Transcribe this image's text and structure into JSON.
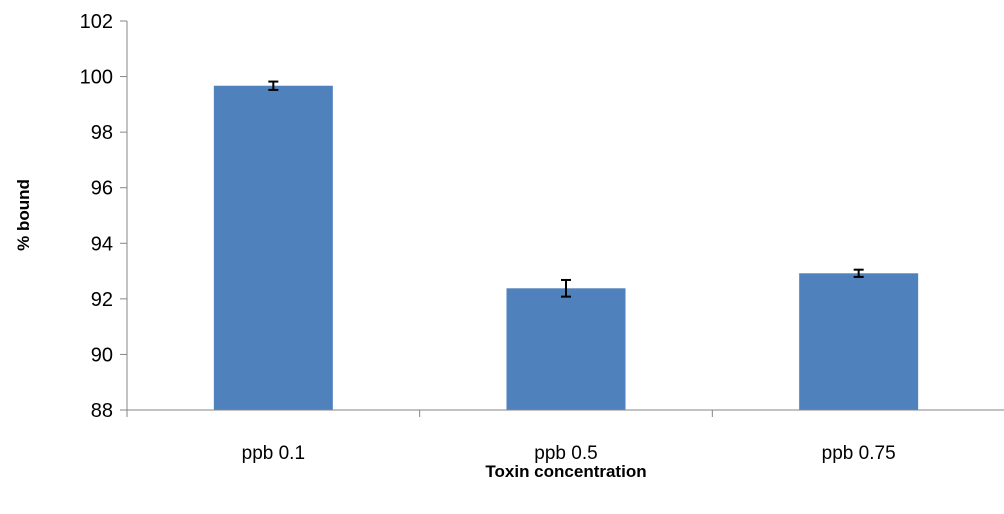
{
  "chart_data": {
    "type": "bar",
    "categories": [
      "ppb 0.1",
      "ppb 0.5",
      "ppb 0.75"
    ],
    "values": [
      99.67,
      92.38,
      92.92
    ],
    "errors": [
      0.15,
      0.3,
      0.13
    ],
    "xlabel": "Toxin concentration",
    "ylabel": "% bound",
    "ylim": [
      88,
      102
    ],
    "yticks": [
      "88",
      "90",
      "92",
      "94",
      "96",
      "98",
      "100",
      "102"
    ],
    "grid": false,
    "legend": "none",
    "bar_color": "#4F81BD",
    "error_bar_color": "#000000",
    "axis_color": "#868686"
  }
}
